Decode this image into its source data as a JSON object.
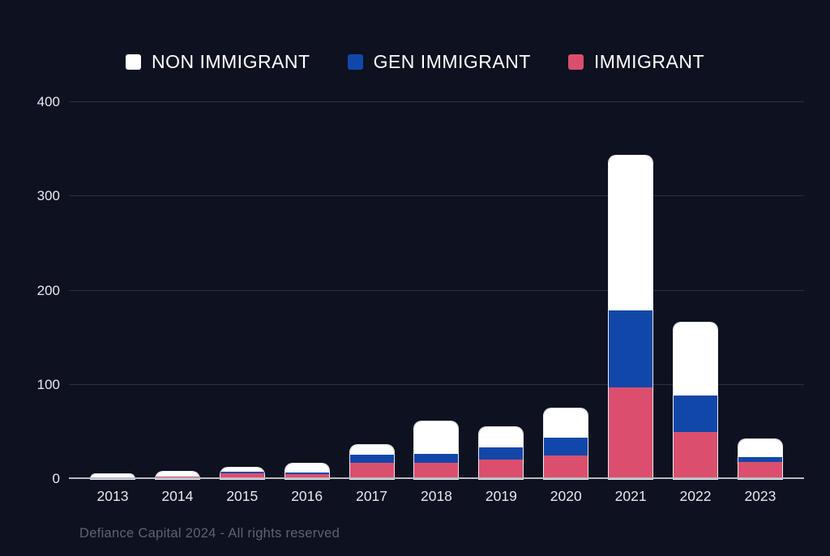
{
  "page": {
    "background": "#0d1120"
  },
  "legend": {
    "items": [
      {
        "label": "NON IMMIGRANT",
        "color": "#ffffff"
      },
      {
        "label": "GEN IMMIGRANT",
        "color": "#1247aa"
      },
      {
        "label": "IMMIGRANT",
        "color": "#db4f6e"
      }
    ]
  },
  "chart_data": {
    "type": "bar",
    "stacked": true,
    "title": "",
    "xlabel": "",
    "ylabel": "",
    "categories": [
      "2013",
      "2014",
      "2015",
      "2016",
      "2017",
      "2018",
      "2019",
      "2020",
      "2021",
      "2022",
      "2023"
    ],
    "series": [
      {
        "name": "IMMIGRANT",
        "color": "#db4f6e",
        "values": [
          0,
          3,
          6,
          5,
          17,
          17,
          21,
          25,
          97,
          50,
          18
        ]
      },
      {
        "name": "GEN IMMIGRANT",
        "color": "#1247aa",
        "values": [
          0,
          0,
          2,
          2,
          9,
          10,
          13,
          19,
          82,
          39,
          5
        ]
      },
      {
        "name": "NON IMMIGRANT",
        "color": "#ffffff",
        "values": [
          5,
          5,
          4,
          9,
          10,
          34,
          21,
          31,
          164,
          77,
          19
        ]
      }
    ],
    "stack_order": "bottom-to-top",
    "totals": [
      5,
      8,
      12,
      16,
      36,
      61,
      55,
      75,
      343,
      166,
      42
    ],
    "ylim": [
      0,
      400
    ],
    "yticks": [
      0,
      100,
      200,
      300,
      400
    ],
    "grid": true,
    "legend_position": "top"
  },
  "footer": {
    "text": "Defiance Capital 2024 - All rights reserved"
  },
  "colors": {
    "background": "#0d1120",
    "gridline": "#2b3140",
    "zero_axis_line": "#b7bac2",
    "tick_label": "#e8e9ed",
    "bar_outline": "#e9ecf1",
    "footer_text": "#5d6472"
  }
}
